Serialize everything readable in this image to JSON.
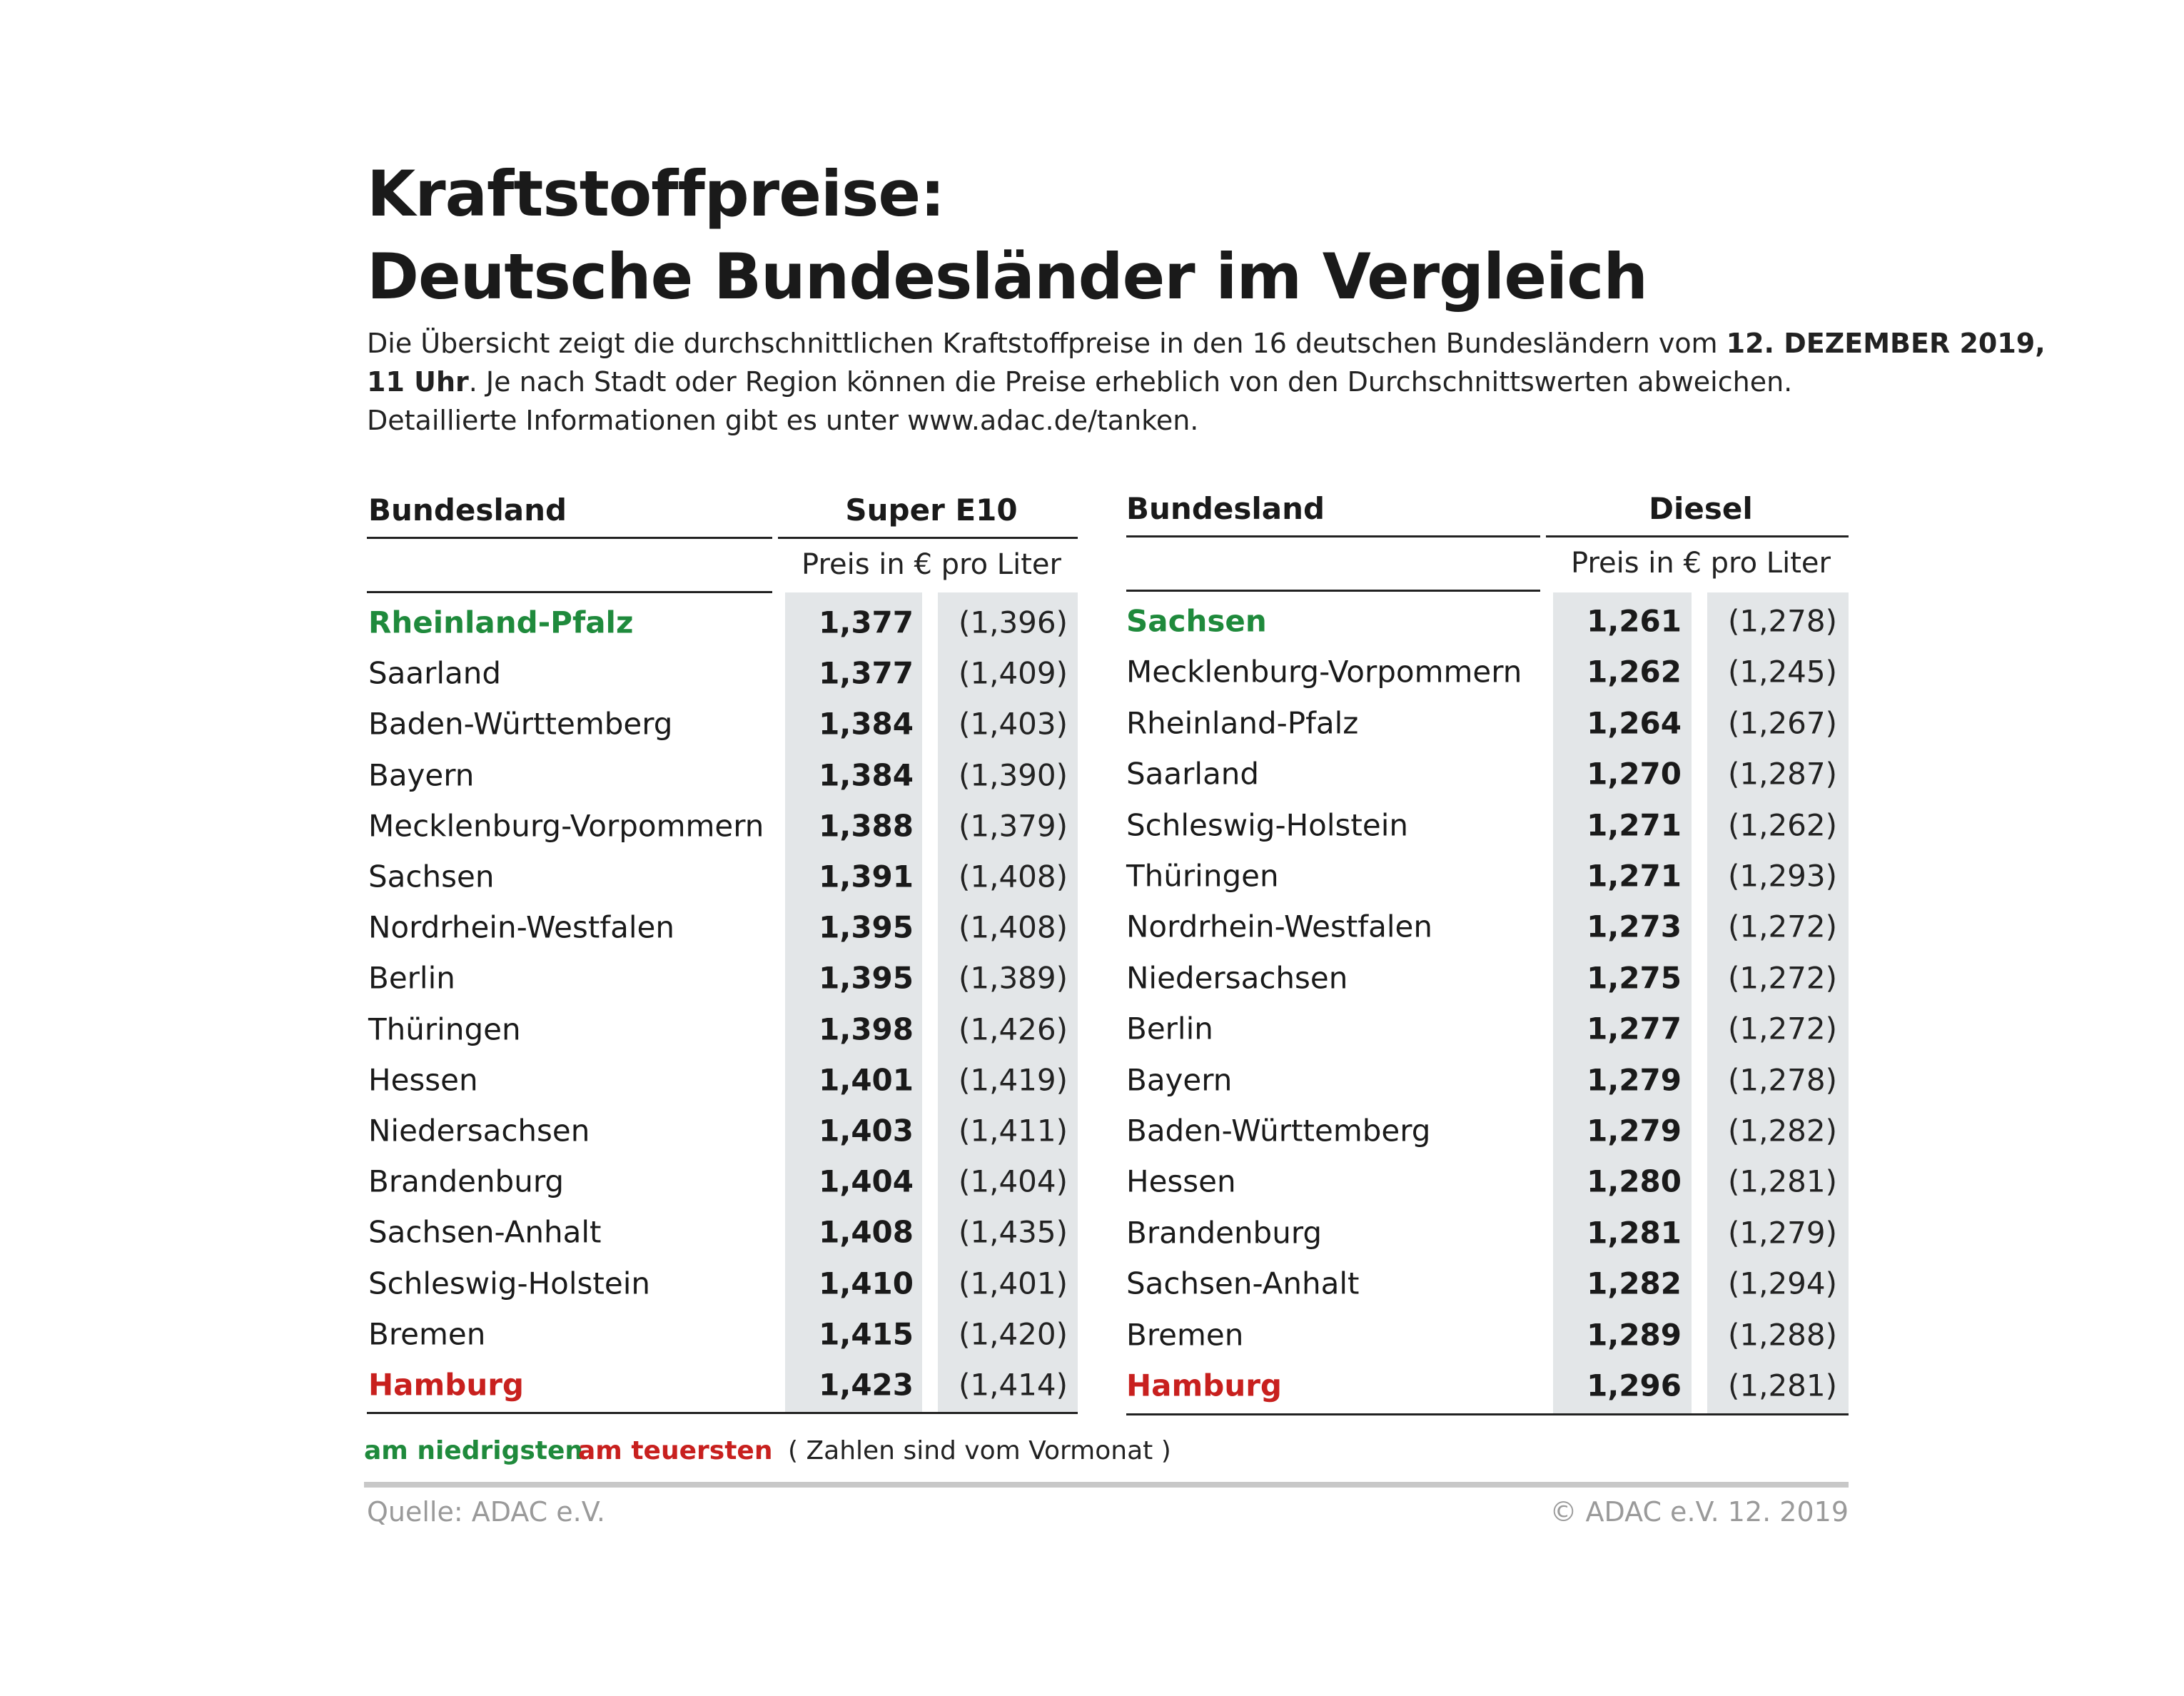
{
  "title_line1": "Kraftstoffpreise:",
  "title_line2": "Deutsche Bundesländer im Vergleich",
  "intro": {
    "line1_text": "Die Übersicht zeigt die durchschnittlichen Kraftstoffpreise in den 16 deutschen Bundesländern vom ",
    "line1_bold": "12. DEZEMBER 2019,",
    "line2_bold": "11 Uhr",
    "line2_text": ". Je nach Stadt oder Region können die Preise erheblich von den Durchschnittswerten abweichen.",
    "line3_text": "Detaillierte Informationen gibt es unter www.adac.de/tanken."
  },
  "tables": [
    {
      "col_state": "Bundesland",
      "col_fuel": "Super E10",
      "unit": "Preis in € pro Liter",
      "rows": [
        {
          "state": "Rheinland-Pfalz",
          "price": "1,377",
          "prev": "(1,396)",
          "mark": "low"
        },
        {
          "state": "Saarland",
          "price": "1,377",
          "prev": "(1,409)",
          "mark": ""
        },
        {
          "state": "Baden-Württemberg",
          "price": "1,384",
          "prev": "(1,403)",
          "mark": ""
        },
        {
          "state": "Bayern",
          "price": "1,384",
          "prev": "(1,390)",
          "mark": ""
        },
        {
          "state": "Mecklenburg-Vorpommern",
          "price": "1,388",
          "prev": "(1,379)",
          "mark": ""
        },
        {
          "state": "Sachsen",
          "price": "1,391",
          "prev": "(1,408)",
          "mark": ""
        },
        {
          "state": "Nordrhein-Westfalen",
          "price": "1,395",
          "prev": "(1,408)",
          "mark": ""
        },
        {
          "state": "Berlin",
          "price": "1,395",
          "prev": "(1,389)",
          "mark": ""
        },
        {
          "state": "Thüringen",
          "price": "1,398",
          "prev": "(1,426)",
          "mark": ""
        },
        {
          "state": "Hessen",
          "price": "1,401",
          "prev": "(1,419)",
          "mark": ""
        },
        {
          "state": "Niedersachsen",
          "price": "1,403",
          "prev": "(1,411)",
          "mark": ""
        },
        {
          "state": "Brandenburg",
          "price": "1,404",
          "prev": "(1,404)",
          "mark": ""
        },
        {
          "state": "Sachsen-Anhalt",
          "price": "1,408",
          "prev": "(1,435)",
          "mark": ""
        },
        {
          "state": "Schleswig-Holstein",
          "price": "1,410",
          "prev": "(1,401)",
          "mark": ""
        },
        {
          "state": "Bremen",
          "price": "1,415",
          "prev": "(1,420)",
          "mark": ""
        },
        {
          "state": "Hamburg",
          "price": "1,423",
          "prev": "(1,414)",
          "mark": "high"
        }
      ]
    },
    {
      "col_state": "Bundesland",
      "col_fuel": "Diesel",
      "unit": "Preis in € pro Liter",
      "rows": [
        {
          "state": "Sachsen",
          "price": "1,261",
          "prev": "(1,278)",
          "mark": "low"
        },
        {
          "state": "Mecklenburg-Vorpommern",
          "price": "1,262",
          "prev": "(1,245)",
          "mark": ""
        },
        {
          "state": "Rheinland-Pfalz",
          "price": "1,264",
          "prev": "(1,267)",
          "mark": ""
        },
        {
          "state": "Saarland",
          "price": "1,270",
          "prev": "(1,287)",
          "mark": ""
        },
        {
          "state": "Schleswig-Holstein",
          "price": "1,271",
          "prev": "(1,262)",
          "mark": ""
        },
        {
          "state": "Thüringen",
          "price": "1,271",
          "prev": "(1,293)",
          "mark": ""
        },
        {
          "state": "Nordrhein-Westfalen",
          "price": "1,273",
          "prev": "(1,272)",
          "mark": ""
        },
        {
          "state": "Niedersachsen",
          "price": "1,275",
          "prev": "(1,272)",
          "mark": ""
        },
        {
          "state": "Berlin",
          "price": "1,277",
          "prev": "(1,272)",
          "mark": ""
        },
        {
          "state": "Bayern",
          "price": "1,279",
          "prev": "(1,278)",
          "mark": ""
        },
        {
          "state": "Baden-Württemberg",
          "price": "1,279",
          "prev": "(1,282)",
          "mark": ""
        },
        {
          "state": "Hessen",
          "price": "1,280",
          "prev": "(1,281)",
          "mark": ""
        },
        {
          "state": "Brandenburg",
          "price": "1,281",
          "prev": "(1,279)",
          "mark": ""
        },
        {
          "state": "Sachsen-Anhalt",
          "price": "1,282",
          "prev": "(1,294)",
          "mark": ""
        },
        {
          "state": "Bremen",
          "price": "1,289",
          "prev": "(1,288)",
          "mark": ""
        },
        {
          "state": "Hamburg",
          "price": "1,296",
          "prev": "(1,281)",
          "mark": "high"
        }
      ]
    }
  ],
  "legend": {
    "low": "am niedrigsten",
    "high": "am teuersten",
    "note": "( Zahlen sind vom Vormonat )"
  },
  "footer": {
    "source": "Quelle: ADAC e.V.",
    "copyright": "© ADAC e.V. 12. 2019"
  },
  "colors": {
    "low": "#1f8a3c",
    "high": "#c8201e",
    "shade": "#e3e6e8"
  }
}
